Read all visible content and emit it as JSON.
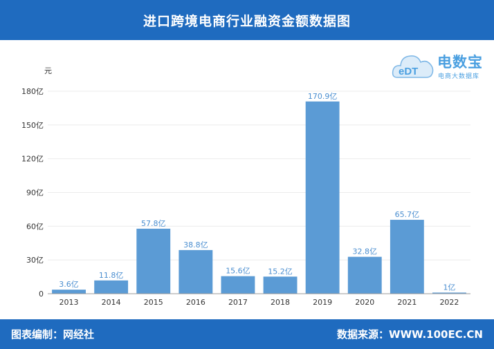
{
  "header": {
    "title": "进口跨境电商行业融资金额数据图"
  },
  "footer": {
    "left": "图表编制：网经社",
    "right": "数据来源：WWW.100EC.CN"
  },
  "logo": {
    "main": "电数宝",
    "sub": "电商大数据库",
    "badge": "eDT"
  },
  "colors": {
    "header_bg": "#1f6bbf",
    "bar": "#5b9bd5",
    "label": "#4a8ed0"
  },
  "chart_data": {
    "type": "bar",
    "title": "进口跨境电商行业融资金额数据图",
    "ylabel": "元",
    "categories": [
      "2013",
      "2014",
      "2015",
      "2016",
      "2017",
      "2018",
      "2019",
      "2020",
      "2021",
      "2022"
    ],
    "values": [
      3.6,
      11.8,
      57.8,
      38.8,
      15.6,
      15.2,
      170.9,
      32.8,
      65.7,
      1
    ],
    "value_labels": [
      "3.6亿",
      "11.8亿",
      "57.8亿",
      "38.8亿",
      "15.6亿",
      "15.2亿",
      "170.9亿",
      "32.8亿",
      "65.7亿",
      "1亿"
    ],
    "yticks": [
      0,
      30,
      60,
      90,
      120,
      150,
      180
    ],
    "ytick_labels": [
      "0",
      "30亿",
      "60亿",
      "90亿",
      "120亿",
      "150亿",
      "180亿"
    ],
    "ylim": [
      0,
      180
    ],
    "grid": true
  }
}
